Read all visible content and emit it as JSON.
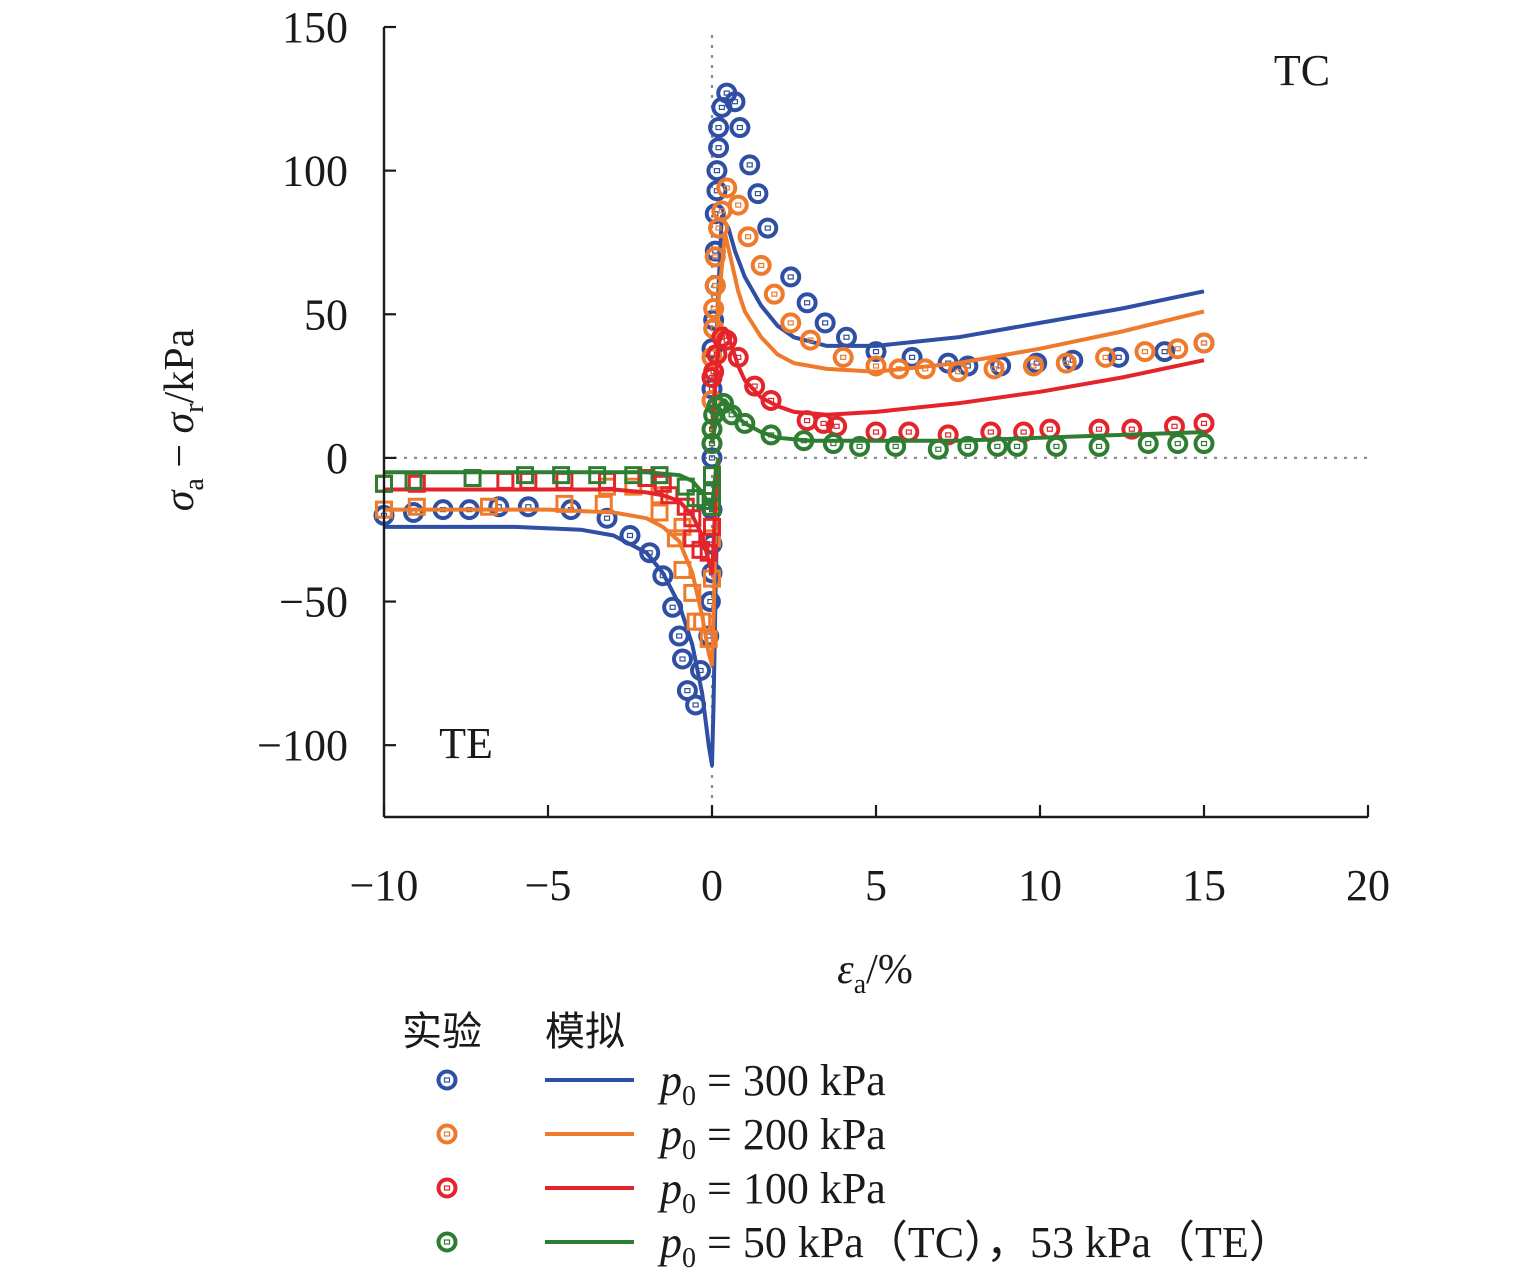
{
  "chart_data": {
    "type": "line",
    "xlabel": {
      "var": "ε",
      "sub": "a",
      "unit": "/%"
    },
    "ylabel": {
      "var1": "σ",
      "sub1": "a",
      "op": " − ",
      "var2": "σ",
      "sub2": "r",
      "unit": "/kPa"
    },
    "xlim": [
      -10,
      20
    ],
    "ylim": [
      -125,
      150
    ],
    "x_ticks": [
      "−10",
      "−5",
      "0",
      "5",
      "10",
      "15",
      "20"
    ],
    "y_ticks": [
      "150",
      "100",
      "50",
      "0",
      "−50",
      "−100"
    ],
    "x_tick_values": [
      -10,
      -5,
      0,
      5,
      10,
      15,
      20
    ],
    "y_tick_values": [
      150,
      100,
      50,
      0,
      -50,
      -100
    ],
    "grid": false,
    "reference_lines": [
      "x=0 dotted",
      "y=0 dotted"
    ],
    "region_labels": {
      "tc": "TC",
      "te": "TE"
    },
    "legend": {
      "header_exp": "实验",
      "header_sim": "模拟",
      "placement": "below",
      "entries": [
        {
          "p": "p",
          "sub": "0",
          "text": " = 300 kPa"
        },
        {
          "p": "p",
          "sub": "0",
          "text": " = 200 kPa"
        },
        {
          "p": "p",
          "sub": "0",
          "text": " = 100 kPa"
        },
        {
          "p": "p",
          "sub": "0",
          "text": " = 50 kPa（TC），53 kPa（TE）"
        }
      ]
    },
    "series": [
      {
        "color": "#2e4fa3",
        "exp_tc": [
          [
            0,
            0
          ],
          [
            0,
            24
          ],
          [
            0,
            38
          ],
          [
            0.05,
            48
          ],
          [
            0.1,
            60
          ],
          [
            0.1,
            72
          ],
          [
            0.1,
            85
          ],
          [
            0.15,
            93
          ],
          [
            0.15,
            100
          ],
          [
            0.2,
            108
          ],
          [
            0.2,
            115
          ],
          [
            0.3,
            122
          ],
          [
            0.45,
            127
          ],
          [
            0.7,
            124
          ],
          [
            0.85,
            115
          ],
          [
            1.15,
            102
          ],
          [
            1.4,
            92
          ],
          [
            1.7,
            80
          ],
          [
            2.4,
            63
          ],
          [
            2.9,
            54
          ],
          [
            3.45,
            47
          ],
          [
            4.1,
            42
          ],
          [
            5.0,
            37
          ],
          [
            6.1,
            35
          ],
          [
            7.2,
            33
          ],
          [
            7.8,
            32
          ],
          [
            8.8,
            32
          ],
          [
            9.9,
            33
          ],
          [
            11.0,
            34
          ],
          [
            12.4,
            35
          ],
          [
            13.8,
            37
          ],
          [
            15.0,
            40
          ]
        ],
        "exp_te": [
          [
            -10,
            -20
          ],
          [
            -9.1,
            -19
          ],
          [
            -8.2,
            -18
          ],
          [
            -7.4,
            -18
          ],
          [
            -6.5,
            -17
          ],
          [
            -5.6,
            -17
          ],
          [
            -4.3,
            -18
          ],
          [
            -3.2,
            -21
          ],
          [
            -2.5,
            -27
          ],
          [
            -1.9,
            -33
          ],
          [
            -1.5,
            -41
          ],
          [
            -1.2,
            -52
          ],
          [
            -1.0,
            -62
          ],
          [
            -0.9,
            -70
          ],
          [
            -0.75,
            -81
          ],
          [
            -0.5,
            -86
          ],
          [
            -0.35,
            -74
          ],
          [
            -0.1,
            -62
          ],
          [
            -0.05,
            -50
          ],
          [
            0,
            -40
          ],
          [
            0,
            -30
          ],
          [
            0,
            -18
          ]
        ],
        "sim_tc": [
          [
            0,
            5
          ],
          [
            0.2,
            60
          ],
          [
            0.3,
            84
          ],
          [
            0.5,
            80
          ],
          [
            0.7,
            72
          ],
          [
            1.0,
            63
          ],
          [
            1.5,
            53
          ],
          [
            2.0,
            46
          ],
          [
            2.5,
            42
          ],
          [
            3.5,
            39
          ],
          [
            5.0,
            39
          ],
          [
            7.5,
            42
          ],
          [
            10,
            47
          ],
          [
            12.5,
            52
          ],
          [
            15,
            58
          ]
        ],
        "sim_te": [
          [
            -10,
            -24
          ],
          [
            -6,
            -24
          ],
          [
            -4,
            -25
          ],
          [
            -3,
            -27
          ],
          [
            -2,
            -33
          ],
          [
            -1.5,
            -40
          ],
          [
            -1,
            -51
          ],
          [
            -0.6,
            -65
          ],
          [
            -0.3,
            -82
          ],
          [
            -0.1,
            -100
          ],
          [
            0,
            -107
          ],
          [
            0.05,
            -85
          ],
          [
            0.12,
            -40
          ],
          [
            0.2,
            0
          ]
        ]
      },
      {
        "color": "#ef7a2c",
        "exp_tc": [
          [
            0,
            5
          ],
          [
            0,
            20
          ],
          [
            0,
            35
          ],
          [
            0.05,
            45
          ],
          [
            0.05,
            52
          ],
          [
            0.1,
            60
          ],
          [
            0.1,
            70
          ],
          [
            0.2,
            80
          ],
          [
            0.3,
            86
          ],
          [
            0.45,
            94
          ],
          [
            0.8,
            88
          ],
          [
            1.1,
            77
          ],
          [
            1.5,
            67
          ],
          [
            1.9,
            57
          ],
          [
            2.4,
            47
          ],
          [
            3.0,
            41
          ],
          [
            4.0,
            35
          ],
          [
            5.0,
            32
          ],
          [
            5.7,
            31
          ],
          [
            6.5,
            31
          ],
          [
            7.5,
            30
          ],
          [
            8.6,
            31
          ],
          [
            9.8,
            32
          ],
          [
            10.8,
            33
          ],
          [
            12.0,
            35
          ],
          [
            13.2,
            37
          ],
          [
            14.2,
            38
          ],
          [
            15.0,
            40
          ]
        ],
        "exp_te": [
          [
            -10,
            -18
          ],
          [
            -9.0,
            -17
          ],
          [
            -6.8,
            -17
          ],
          [
            -4.5,
            -16
          ],
          [
            -3.3,
            -16
          ],
          [
            -3.2,
            -10
          ],
          [
            -2.4,
            -10
          ],
          [
            -1.6,
            -19
          ],
          [
            -1.6,
            -13
          ],
          [
            -1.1,
            -28
          ],
          [
            -0.9,
            -24
          ],
          [
            -0.9,
            -39
          ],
          [
            -0.6,
            -47
          ],
          [
            -0.5,
            -57
          ],
          [
            -0.3,
            -57
          ],
          [
            -0.1,
            -63
          ],
          [
            0,
            -42
          ],
          [
            0,
            -28
          ],
          [
            0,
            -15
          ]
        ],
        "sim_tc": [
          [
            0,
            5
          ],
          [
            0.2,
            55
          ],
          [
            0.4,
            78
          ],
          [
            0.6,
            68
          ],
          [
            0.8,
            58
          ],
          [
            1.0,
            51
          ],
          [
            1.5,
            42
          ],
          [
            2.0,
            36
          ],
          [
            2.5,
            33
          ],
          [
            3.5,
            31
          ],
          [
            5.0,
            30
          ],
          [
            7.5,
            33
          ],
          [
            10,
            38
          ],
          [
            12.5,
            44
          ],
          [
            15,
            51
          ]
        ],
        "sim_te": [
          [
            -10,
            -18
          ],
          [
            -5,
            -18
          ],
          [
            -3,
            -19
          ],
          [
            -2,
            -21
          ],
          [
            -1.5,
            -24
          ],
          [
            -1,
            -29
          ],
          [
            -0.6,
            -40
          ],
          [
            -0.3,
            -55
          ],
          [
            -0.1,
            -68
          ],
          [
            0,
            -72
          ],
          [
            0.05,
            -55
          ],
          [
            0.12,
            -20
          ],
          [
            0.2,
            0
          ]
        ]
      },
      {
        "color": "#e3242b",
        "exp_tc": [
          [
            0,
            28
          ],
          [
            0.05,
            30
          ],
          [
            0.15,
            36
          ],
          [
            0.3,
            42
          ],
          [
            0.45,
            41
          ],
          [
            0.8,
            35
          ],
          [
            1.3,
            25
          ],
          [
            1.8,
            20
          ],
          [
            2.9,
            13
          ],
          [
            3.4,
            12
          ],
          [
            3.8,
            11
          ],
          [
            5.0,
            9
          ],
          [
            6.0,
            9
          ],
          [
            7.2,
            8
          ],
          [
            8.5,
            9
          ],
          [
            9.5,
            9
          ],
          [
            10.3,
            10
          ],
          [
            11.8,
            10
          ],
          [
            12.8,
            10
          ],
          [
            14.1,
            11
          ],
          [
            15.0,
            12
          ]
        ],
        "exp_te": [
          [
            -10,
            -9
          ],
          [
            -9.0,
            -9
          ],
          [
            -6.3,
            -8
          ],
          [
            -5.6,
            -8
          ],
          [
            -4.5,
            -8
          ],
          [
            -3.2,
            -8
          ],
          [
            -2.0,
            -7
          ],
          [
            -1.5,
            -9
          ],
          [
            -1.3,
            -13
          ],
          [
            -0.8,
            -17
          ],
          [
            -0.6,
            -21
          ],
          [
            -0.6,
            -28
          ],
          [
            -0.35,
            -32
          ],
          [
            -0.1,
            -33
          ],
          [
            0,
            -24
          ],
          [
            0,
            -15
          ]
        ],
        "sim_tc": [
          [
            0,
            10
          ],
          [
            0.2,
            40
          ],
          [
            0.4,
            45
          ],
          [
            0.6,
            39
          ],
          [
            0.8,
            32
          ],
          [
            1.0,
            27
          ],
          [
            1.5,
            21
          ],
          [
            2.0,
            18
          ],
          [
            2.5,
            16
          ],
          [
            3.5,
            15
          ],
          [
            5.0,
            16
          ],
          [
            7.5,
            19
          ],
          [
            10,
            23
          ],
          [
            12.5,
            28
          ],
          [
            15,
            34
          ]
        ],
        "sim_te": [
          [
            -10,
            -11
          ],
          [
            -5,
            -11
          ],
          [
            -3,
            -11
          ],
          [
            -2,
            -12
          ],
          [
            -1.5,
            -13
          ],
          [
            -1,
            -15
          ],
          [
            -0.6,
            -20
          ],
          [
            -0.3,
            -27
          ],
          [
            -0.1,
            -36
          ],
          [
            0,
            -40
          ],
          [
            0.05,
            -30
          ],
          [
            0.12,
            -10
          ],
          [
            0.2,
            0
          ]
        ]
      },
      {
        "color": "#2e7d32",
        "exp_tc": [
          [
            0,
            5
          ],
          [
            0,
            10
          ],
          [
            0.05,
            15
          ],
          [
            0.15,
            18
          ],
          [
            0.35,
            19
          ],
          [
            0.6,
            15
          ],
          [
            1.0,
            12
          ],
          [
            1.8,
            8
          ],
          [
            2.8,
            6
          ],
          [
            3.7,
            5
          ],
          [
            4.5,
            4
          ],
          [
            5.6,
            4
          ],
          [
            6.9,
            3
          ],
          [
            7.8,
            4
          ],
          [
            8.7,
            4
          ],
          [
            9.3,
            4
          ],
          [
            10.5,
            4
          ],
          [
            11.8,
            4
          ],
          [
            13.3,
            5
          ],
          [
            14.2,
            5
          ],
          [
            15.0,
            5
          ]
        ],
        "exp_te": [
          [
            -10,
            -9
          ],
          [
            -9.1,
            -8
          ],
          [
            -7.3,
            -7
          ],
          [
            -5.7,
            -6
          ],
          [
            -4.6,
            -6
          ],
          [
            -3.5,
            -6
          ],
          [
            -2.4,
            -6
          ],
          [
            -1.6,
            -6
          ],
          [
            -0.8,
            -10
          ],
          [
            -0.5,
            -14
          ],
          [
            -0.2,
            -15
          ],
          [
            0,
            -17
          ],
          [
            0,
            -12
          ],
          [
            0,
            -6
          ]
        ],
        "sim_tc": [
          [
            0,
            5
          ],
          [
            0.2,
            18
          ],
          [
            0.4,
            20
          ],
          [
            0.6,
            17
          ],
          [
            0.8,
            14
          ],
          [
            1.0,
            12
          ],
          [
            1.5,
            9
          ],
          [
            2.0,
            7
          ],
          [
            3.0,
            6
          ],
          [
            5.0,
            6
          ],
          [
            7.5,
            6
          ],
          [
            10,
            7
          ],
          [
            12.5,
            8
          ],
          [
            15,
            9
          ]
        ],
        "sim_te": [
          [
            -10,
            -5
          ],
          [
            -5,
            -5
          ],
          [
            -2,
            -5
          ],
          [
            -1,
            -6
          ],
          [
            -0.6,
            -8
          ],
          [
            -0.3,
            -12
          ],
          [
            -0.1,
            -16
          ],
          [
            0,
            -18
          ],
          [
            0.05,
            -12
          ],
          [
            0.12,
            -4
          ],
          [
            0.2,
            0
          ]
        ]
      }
    ]
  }
}
